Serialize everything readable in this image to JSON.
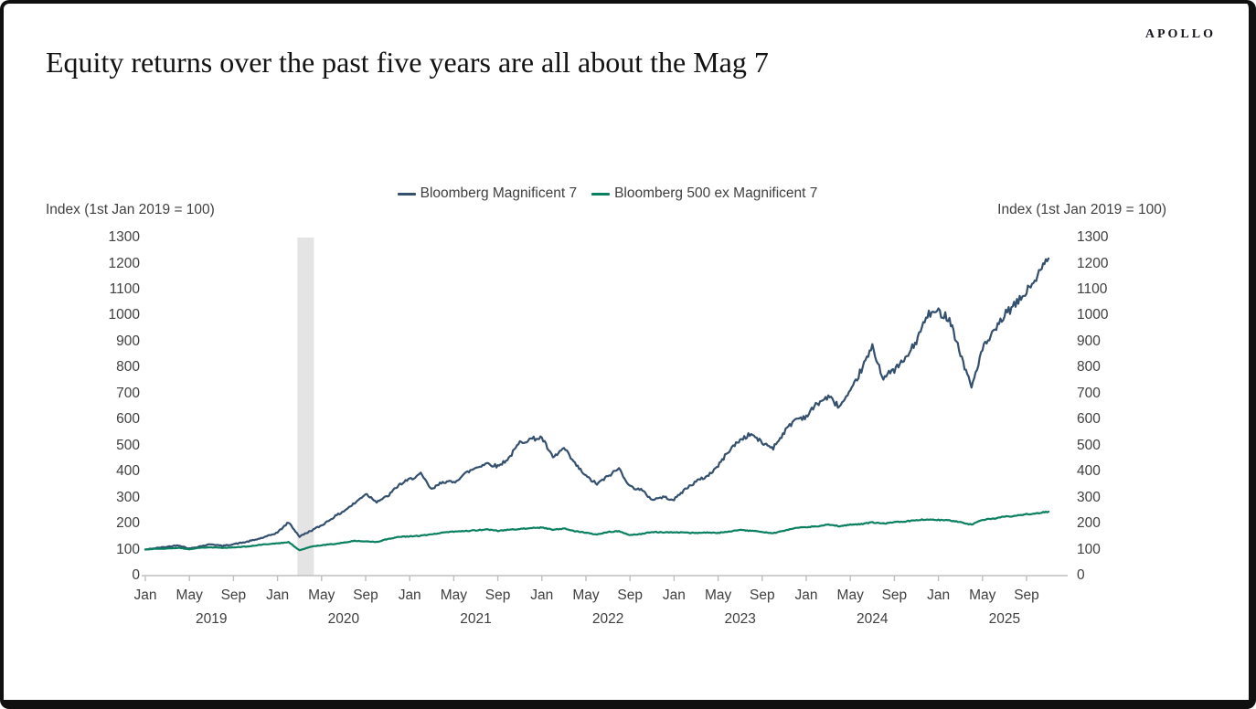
{
  "page": {
    "logo": "APOLLO",
    "title": "Equity returns over the past five years are all about the Mag 7"
  },
  "colors": {
    "mag7_line": "#34506e",
    "ex_mag7_line": "#0a8060",
    "recession_band": "#e4e4e4",
    "axis": "#bfbfbf",
    "chart_text": "#3f3f3f",
    "title_text": "#121212",
    "frame": "#101010"
  },
  "chart_data": {
    "type": "line",
    "title": "Equity returns over the past five years are all about the Mag 7",
    "y_axis_label_left": "Index (1st Jan 2019 = 100)",
    "y_axis_label_right": "Index (1st Jan 2019 = 100)",
    "ylim": [
      0,
      1300
    ],
    "y_ticks": [
      0,
      100,
      200,
      300,
      400,
      500,
      600,
      700,
      800,
      900,
      1000,
      1100,
      1200,
      1300
    ],
    "grid": false,
    "legend_position": "top-center",
    "x_range_note": "monthly values, Jan 2019 through Nov 2025, indexed to 100 at 1st Jan 2019",
    "month_labels": [
      "Jan",
      "May",
      "Sep"
    ],
    "year_labels": [
      "2019",
      "2020",
      "2021",
      "2022",
      "2023",
      "2024",
      "2025"
    ],
    "recession_band": {
      "start_month": "2020-02",
      "end_month": "2020-04",
      "start_month_index": 13.8,
      "end_month_index": 15.3,
      "color": "#e4e4e4"
    },
    "series": [
      {
        "name": "Bloomberg Magnificent 7",
        "color": "#34506e",
        "monthly_values": [
          100,
          106,
          111,
          117,
          104,
          113,
          121,
          114,
          121,
          128,
          138,
          150,
          166,
          205,
          150,
          172,
          193,
          222,
          248,
          278,
          315,
          285,
          305,
          348,
          370,
          390,
          330,
          362,
          358,
          392,
          415,
          432,
          420,
          452,
          512,
          525,
          530,
          452,
          490,
          430,
          382,
          352,
          382,
          412,
          342,
          330,
          292,
          302,
          292,
          332,
          362,
          382,
          422,
          482,
          522,
          545,
          510,
          492,
          552,
          602,
          612,
          662,
          688,
          650,
          702,
          792,
          878,
          760,
          792,
          832,
          902,
          1002,
          1015,
          990,
          852,
          725,
          872,
          932,
          1002,
          1042,
          1092,
          1152,
          1220
        ]
      },
      {
        "name": "Bloomberg 500 ex Magnificent 7",
        "color": "#0a8060",
        "monthly_values": [
          100,
          103,
          104,
          107,
          101,
          107,
          109,
          106,
          109,
          111,
          116,
          121,
          124,
          129,
          97,
          111,
          117,
          121,
          127,
          134,
          131,
          129,
          141,
          149,
          151,
          153,
          159,
          165,
          169,
          171,
          174,
          178,
          172,
          177,
          179,
          183,
          185,
          177,
          181,
          171,
          165,
          158,
          168,
          171,
          156,
          160,
          168,
          166,
          167,
          165,
          164,
          166,
          164,
          170,
          176,
          172,
          168,
          163,
          172,
          184,
          186,
          190,
          196,
          190,
          196,
          198,
          205,
          200,
          206,
          208,
          214,
          216,
          214,
          212,
          206,
          196,
          214,
          219,
          226,
          230,
          236,
          240,
          246
        ]
      }
    ]
  }
}
